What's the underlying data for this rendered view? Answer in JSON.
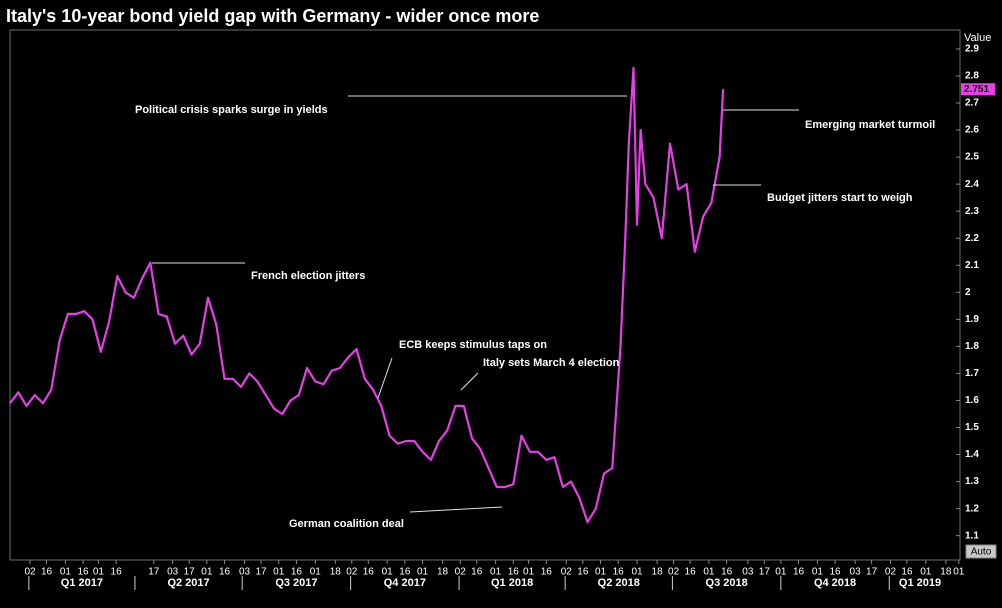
{
  "chart_data": {
    "type": "line",
    "title": "Italy's 10-year bond yield gap with Germany - wider once more",
    "ylabel": "Value",
    "button": "Auto",
    "xlim": [
      "2016-12-16",
      "2019-03-02"
    ],
    "ylim": [
      1.01,
      2.97
    ],
    "yticks": [
      1.1,
      1.2,
      1.3,
      1.4,
      1.5,
      1.6,
      1.7,
      1.8,
      1.9,
      2,
      2.1,
      2.2,
      2.3,
      2.4,
      2.5,
      2.6,
      2.7,
      2.8,
      2.9
    ],
    "xticks": [
      {
        "value": "2017-01-02",
        "label": "02"
      },
      {
        "value": "2017-01-16",
        "label": "16"
      },
      {
        "value": "2017-02-01",
        "label": "01"
      },
      {
        "value": "2017-02-16",
        "label": "16"
      },
      {
        "value": "2017-03-01",
        "label": "01"
      },
      {
        "value": "2017-03-16",
        "label": "16"
      },
      {
        "value": "2017-04-17",
        "label": "17"
      },
      {
        "value": "2017-05-03",
        "label": "03"
      },
      {
        "value": "2017-05-17",
        "label": "17"
      },
      {
        "value": "2017-06-01",
        "label": "01"
      },
      {
        "value": "2017-06-16",
        "label": "16"
      },
      {
        "value": "2017-07-03",
        "label": "03"
      },
      {
        "value": "2017-07-17",
        "label": "17"
      },
      {
        "value": "2017-08-01",
        "label": "01"
      },
      {
        "value": "2017-08-16",
        "label": "16"
      },
      {
        "value": "2017-09-01",
        "label": "01"
      },
      {
        "value": "2017-09-18",
        "label": "18"
      },
      {
        "value": "2017-10-02",
        "label": "02"
      },
      {
        "value": "2017-10-16",
        "label": "16"
      },
      {
        "value": "2017-11-01",
        "label": "01"
      },
      {
        "value": "2017-11-16",
        "label": "16"
      },
      {
        "value": "2017-12-01",
        "label": "01"
      },
      {
        "value": "2017-12-18",
        "label": "18"
      },
      {
        "value": "2018-01-02",
        "label": "02"
      },
      {
        "value": "2018-01-16",
        "label": "16"
      },
      {
        "value": "2018-02-01",
        "label": "01"
      },
      {
        "value": "2018-02-16",
        "label": "16"
      },
      {
        "value": "2018-03-01",
        "label": "01"
      },
      {
        "value": "2018-03-16",
        "label": "16"
      },
      {
        "value": "2018-04-02",
        "label": "02"
      },
      {
        "value": "2018-04-16",
        "label": "16"
      },
      {
        "value": "2018-05-01",
        "label": "01"
      },
      {
        "value": "2018-05-16",
        "label": "16"
      },
      {
        "value": "2018-06-01",
        "label": "01"
      },
      {
        "value": "2018-06-18",
        "label": "18"
      },
      {
        "value": "2018-07-02",
        "label": "02"
      },
      {
        "value": "2018-07-16",
        "label": "16"
      },
      {
        "value": "2018-08-01",
        "label": "01"
      },
      {
        "value": "2018-08-16",
        "label": "16"
      },
      {
        "value": "2018-09-03",
        "label": "03"
      },
      {
        "value": "2018-09-17",
        "label": "17"
      },
      {
        "value": "2018-10-01",
        "label": "01"
      },
      {
        "value": "2018-10-16",
        "label": "16"
      },
      {
        "value": "2018-11-01",
        "label": "01"
      },
      {
        "value": "2018-11-16",
        "label": "16"
      },
      {
        "value": "2018-12-03",
        "label": "03"
      },
      {
        "value": "2018-12-17",
        "label": "17"
      },
      {
        "value": "2019-01-02",
        "label": "02"
      },
      {
        "value": "2019-01-16",
        "label": "16"
      },
      {
        "value": "2019-02-01",
        "label": "01"
      },
      {
        "value": "2019-02-18",
        "label": "18"
      },
      {
        "value": "2019-03-01",
        "label": "01"
      }
    ],
    "quarters": [
      {
        "value": "2017-01-01",
        "label": "Q1 2017"
      },
      {
        "value": "2017-04-01",
        "label": "Q2 2017"
      },
      {
        "value": "2017-07-01",
        "label": "Q3 2017"
      },
      {
        "value": "2017-10-01",
        "label": "Q4 2017"
      },
      {
        "value": "2018-01-01",
        "label": "Q1 2018"
      },
      {
        "value": "2018-04-01",
        "label": "Q2 2018"
      },
      {
        "value": "2018-07-01",
        "label": "Q3 2018"
      },
      {
        "value": "2018-10-01",
        "label": "Q4 2018"
      },
      {
        "value": "2019-01-01",
        "label": "Q1 2019"
      }
    ],
    "annotations": [
      "Political crisis sparks surge in yields",
      "French election jitters",
      "ECB keeps stimulus taps on",
      "Italy sets March 4 election",
      "German coalition deal",
      "Emerging market turmoil",
      "Budget jitters start to weigh"
    ],
    "series": [
      {
        "name": "Value",
        "color": "#e63fe8",
        "x": [
          "2016-12-16",
          "2016-12-23",
          "2016-12-30",
          "2017-01-06",
          "2017-01-13",
          "2017-01-20",
          "2017-01-27",
          "2017-02-03",
          "2017-02-10",
          "2017-02-17",
          "2017-02-24",
          "2017-03-03",
          "2017-03-10",
          "2017-03-17",
          "2017-03-24",
          "2017-03-31",
          "2017-04-07",
          "2017-04-14",
          "2017-04-21",
          "2017-04-28",
          "2017-05-05",
          "2017-05-12",
          "2017-05-19",
          "2017-05-26",
          "2017-06-02",
          "2017-06-09",
          "2017-06-16",
          "2017-06-23",
          "2017-06-30",
          "2017-07-07",
          "2017-07-14",
          "2017-07-21",
          "2017-07-28",
          "2017-08-04",
          "2017-08-11",
          "2017-08-18",
          "2017-08-25",
          "2017-09-01",
          "2017-09-08",
          "2017-09-15",
          "2017-09-22",
          "2017-09-29",
          "2017-10-06",
          "2017-10-13",
          "2017-10-20",
          "2017-10-27",
          "2017-11-03",
          "2017-11-10",
          "2017-11-17",
          "2017-11-24",
          "2017-12-01",
          "2017-12-08",
          "2017-12-15",
          "2017-12-22",
          "2017-12-29",
          "2018-01-05",
          "2018-01-12",
          "2018-01-19",
          "2018-01-26",
          "2018-02-02",
          "2018-02-09",
          "2018-02-16",
          "2018-02-23",
          "2018-03-02",
          "2018-03-09",
          "2018-03-16",
          "2018-03-23",
          "2018-03-30",
          "2018-04-06",
          "2018-04-13",
          "2018-04-20",
          "2018-04-27",
          "2018-05-04",
          "2018-05-11",
          "2018-05-18",
          "2018-05-22",
          "2018-05-25",
          "2018-05-29",
          "2018-06-01",
          "2018-06-04",
          "2018-06-08",
          "2018-06-15",
          "2018-06-22",
          "2018-06-29",
          "2018-07-06",
          "2018-07-13",
          "2018-07-20",
          "2018-07-27",
          "2018-08-03",
          "2018-08-10",
          "2018-08-13"
        ],
        "values": [
          1.59,
          1.63,
          1.58,
          1.62,
          1.59,
          1.64,
          1.82,
          1.92,
          1.92,
          1.93,
          1.9,
          1.78,
          1.89,
          2.06,
          2.0,
          1.98,
          2.05,
          2.11,
          1.92,
          1.91,
          1.81,
          1.84,
          1.77,
          1.81,
          1.98,
          1.88,
          1.68,
          1.68,
          1.65,
          1.7,
          1.67,
          1.62,
          1.57,
          1.55,
          1.6,
          1.62,
          1.72,
          1.67,
          1.66,
          1.71,
          1.72,
          1.76,
          1.79,
          1.68,
          1.64,
          1.58,
          1.47,
          1.44,
          1.45,
          1.45,
          1.41,
          1.38,
          1.45,
          1.49,
          1.58,
          1.58,
          1.46,
          1.42,
          1.35,
          1.28,
          1.28,
          1.29,
          1.47,
          1.41,
          1.41,
          1.38,
          1.39,
          1.28,
          1.3,
          1.24,
          1.15,
          1.2,
          1.33,
          1.35,
          1.8,
          2.2,
          2.55,
          2.83,
          2.25,
          2.6,
          2.4,
          2.35,
          2.2,
          2.55,
          2.38,
          2.4,
          2.15,
          2.28,
          2.33,
          2.5,
          2.751
        ]
      }
    ]
  }
}
